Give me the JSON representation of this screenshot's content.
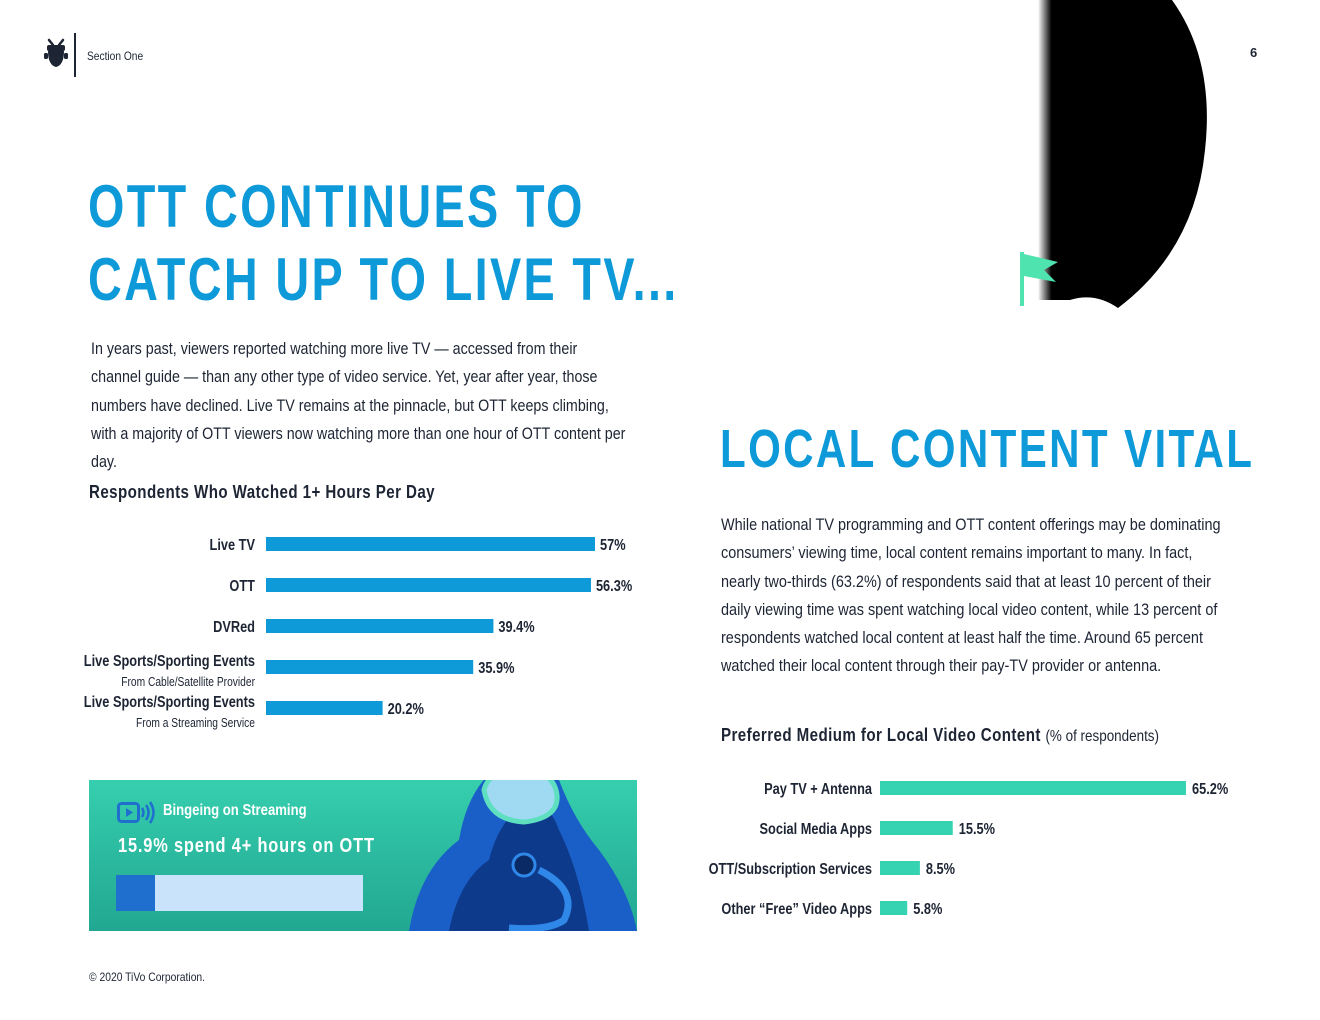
{
  "header": {
    "section_label": "Section One",
    "page_number": "6",
    "logo_icon": "tivo-logo-icon"
  },
  "left": {
    "title_line1": "OTT CONTINUES TO",
    "title_line2": "CATCH UP TO LIVE TV...",
    "body": "In years past, viewers reported watching more live TV — accessed from their channel guide — than any other type of video service. Yet, year after year, those numbers have declined. Live TV remains at the pinnacle, but OTT keeps climbing, with a majority of OTT viewers now watching more than one hour of OTT content per day."
  },
  "right": {
    "title": "LOCAL CONTENT VITAL",
    "body": "While national TV programming and OTT content offerings may be dominating consumers’ viewing time, local content remains important to many. In fact, nearly two-thirds (63.2%) of respondents said that at least 10 percent of their daily viewing time was spent watching local video content, while 13 percent of respondents watched local content at least half the time. Around 65 percent watched their local content through their pay-TV provider or antenna."
  },
  "callout": {
    "heading": "Bingeing on Streaming",
    "stat": "15.9% spend 4+ hours on OTT",
    "value_percent": 15.9,
    "icon": "streaming-icon",
    "track_color": "#c9e3fb",
    "fill_color": "#1f6fcf",
    "background_color": "#2ebc9f"
  },
  "footer": {
    "copyright": "© 2020 TiVo Corporation."
  },
  "chart_data": [
    {
      "type": "bar",
      "orientation": "horizontal",
      "title": "Respondents Who Watched 1+ Hours Per Day",
      "categories": [
        "Live TV",
        "OTT",
        "DVRed",
        "Live Sports/Sporting Events",
        "Live Sports/Sporting Events"
      ],
      "sublabels": [
        "",
        "",
        "",
        "From Cable/Satellite Provider",
        "From a Streaming Service"
      ],
      "values": [
        57,
        56.3,
        39.4,
        35.9,
        20.2
      ],
      "value_labels": [
        "57%",
        "56.3%",
        "39.4%",
        "35.9%",
        "20.2%"
      ],
      "xlim": [
        0,
        57
      ],
      "color": "#0e9ad8",
      "grid": false
    },
    {
      "type": "bar",
      "orientation": "horizontal",
      "title": "Preferred Medium for Local Video Content",
      "title_unit": "(% of respondents)",
      "categories": [
        "Pay TV + Antenna",
        "Social Media Apps",
        "OTT/Subscription Services",
        "Other “Free” Video Apps"
      ],
      "values": [
        65.2,
        15.5,
        8.5,
        5.8
      ],
      "value_labels": [
        "65.2%",
        "15.5%",
        "8.5%",
        "5.8%"
      ],
      "xlim": [
        0,
        65.2
      ],
      "color": "#36d3b2",
      "grid": false
    }
  ]
}
